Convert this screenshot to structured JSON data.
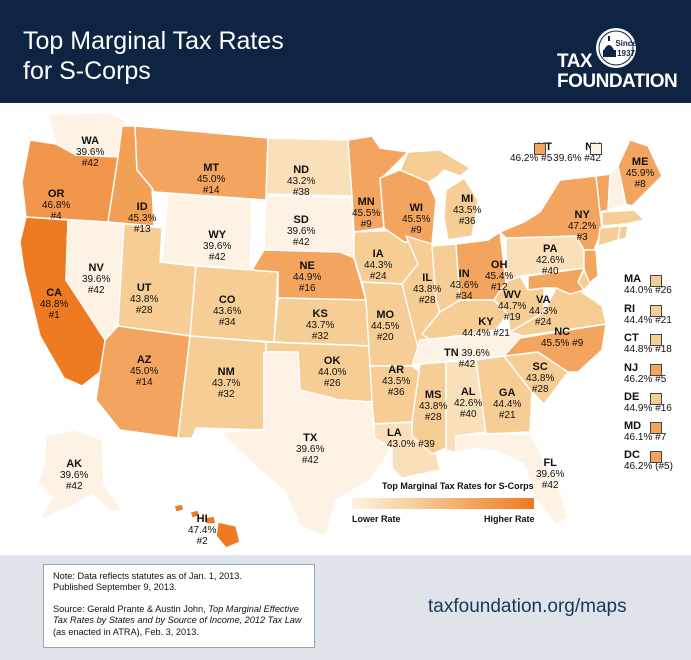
{
  "header": {
    "title": "Top Marginal Tax Rates\nfor S-Corps",
    "logo_top": "TAX",
    "logo_bottom": "FOUNDATION",
    "seal_line1": "Since",
    "seal_line2": "1937"
  },
  "colors": {
    "header_bg": "#0f2442",
    "tier_lowest": "#fdf2e3",
    "tier_low": "#f9dfba",
    "tier_mid": "#f6cd94",
    "tier_high": "#f3a45e",
    "tier_highest": "#ee7a22",
    "footer_bg": "#dfe4ea"
  },
  "map": {
    "states": [
      {
        "abbr": "WA",
        "rate": "39.6%",
        "rank": "#42"
      },
      {
        "abbr": "OR",
        "rate": "46.8%",
        "rank": "#4"
      },
      {
        "abbr": "CA",
        "rate": "48.8%",
        "rank": "#1"
      },
      {
        "abbr": "NV",
        "rate": "39.6%",
        "rank": "#42"
      },
      {
        "abbr": "ID",
        "rate": "45.3%",
        "rank": "#13"
      },
      {
        "abbr": "MT",
        "rate": "45.0%",
        "rank": "#14"
      },
      {
        "abbr": "WY",
        "rate": "39.6%",
        "rank": "#42"
      },
      {
        "abbr": "UT",
        "rate": "43.8%",
        "rank": "#28"
      },
      {
        "abbr": "AZ",
        "rate": "45.0%",
        "rank": "#14"
      },
      {
        "abbr": "CO",
        "rate": "43.6%",
        "rank": "#34"
      },
      {
        "abbr": "NM",
        "rate": "43.7%",
        "rank": "#32"
      },
      {
        "abbr": "ND",
        "rate": "43.2%",
        "rank": "#38"
      },
      {
        "abbr": "SD",
        "rate": "39.6%",
        "rank": "#42"
      },
      {
        "abbr": "NE",
        "rate": "44.9%",
        "rank": "#16"
      },
      {
        "abbr": "KS",
        "rate": "43.7%",
        "rank": "#32"
      },
      {
        "abbr": "OK",
        "rate": "44.0%",
        "rank": "#26"
      },
      {
        "abbr": "TX",
        "rate": "39.6%",
        "rank": "#42"
      },
      {
        "abbr": "MN",
        "rate": "45.5%",
        "rank": "#9"
      },
      {
        "abbr": "IA",
        "rate": "44.3%",
        "rank": "#24"
      },
      {
        "abbr": "MO",
        "rate": "44.5%",
        "rank": "#20"
      },
      {
        "abbr": "AR",
        "rate": "43.5%",
        "rank": "#36"
      },
      {
        "abbr": "LA",
        "rate": "43.0%",
        "rank": "#39"
      },
      {
        "abbr": "WI",
        "rate": "45.5%",
        "rank": "#9"
      },
      {
        "abbr": "IL",
        "rate": "43.8%",
        "rank": "#28"
      },
      {
        "abbr": "MI",
        "rate": "43.5%",
        "rank": "#36"
      },
      {
        "abbr": "IN",
        "rate": "43.6%",
        "rank": "#34"
      },
      {
        "abbr": "OH",
        "rate": "45.4%",
        "rank": "#12"
      },
      {
        "abbr": "KY",
        "rate": "44.4%",
        "rank": "#21"
      },
      {
        "abbr": "TN",
        "rate": "39.6%",
        "rank": "#42"
      },
      {
        "abbr": "MS",
        "rate": "43.8%",
        "rank": "#28"
      },
      {
        "abbr": "AL",
        "rate": "42.6%",
        "rank": "#40"
      },
      {
        "abbr": "GA",
        "rate": "44.4%",
        "rank": "#21"
      },
      {
        "abbr": "FL",
        "rate": "39.6%",
        "rank": "#42"
      },
      {
        "abbr": "SC",
        "rate": "43.8%",
        "rank": "#28"
      },
      {
        "abbr": "NC",
        "rate": "45.5%",
        "rank": "#9"
      },
      {
        "abbr": "VA",
        "rate": "44.3%",
        "rank": "#24"
      },
      {
        "abbr": "WV",
        "rate": "44.7%",
        "rank": "#19"
      },
      {
        "abbr": "PA",
        "rate": "42.6%",
        "rank": "#40"
      },
      {
        "abbr": "NY",
        "rate": "47.2%",
        "rank": "#3"
      },
      {
        "abbr": "ME",
        "rate": "45.9%",
        "rank": "#8"
      },
      {
        "abbr": "AK",
        "rate": "39.6%",
        "rank": "#42"
      },
      {
        "abbr": "HI",
        "rate": "47.4%",
        "rank": "#2"
      }
    ],
    "callouts": [
      {
        "abbr": "VT",
        "rate": "46.2%",
        "rank": "#5",
        "color": "#f3a45e"
      },
      {
        "abbr": "NH",
        "rate": "39.6%",
        "rank": "#42",
        "color": "#fdf2e3"
      },
      {
        "abbr": "MA",
        "rate": "44.0%",
        "rank": "#26",
        "color": "#f6cd94"
      },
      {
        "abbr": "RI",
        "rate": "44.4%",
        "rank": "#21",
        "color": "#f6cd94"
      },
      {
        "abbr": "CT",
        "rate": "44.8%",
        "rank": "#18",
        "color": "#f6cd94"
      },
      {
        "abbr": "NJ",
        "rate": "46.2%",
        "rank": "#5",
        "color": "#f3a45e"
      },
      {
        "abbr": "DE",
        "rate": "44.9%",
        "rank": "#16",
        "color": "#f6cd94"
      },
      {
        "abbr": "MD",
        "rate": "46.1%",
        "rank": "#7",
        "color": "#f3a45e"
      },
      {
        "abbr": "DC",
        "rate": "46.2%",
        "rank": "(#5)",
        "color": "#f3a45e"
      }
    ]
  },
  "legend": {
    "title": "Top Marginal Tax Rates for S-Corps",
    "low_label": "Lower Rate",
    "high_label": "Higher Rate"
  },
  "footer": {
    "note_line1": "Note: Data reflects statutes as of Jan. 1, 2013.",
    "note_line2": "Published September 9, 2013.",
    "source_prefix": "Source: Gerald Prante & Austin John, ",
    "source_title": "Top Marginal Effective Tax Rates by States and by Source of Income, 2012 Tax Law",
    "source_suffix": " (as enacted in ATRA), Feb. 3, 2013.",
    "url": "taxfoundation.org/maps"
  }
}
